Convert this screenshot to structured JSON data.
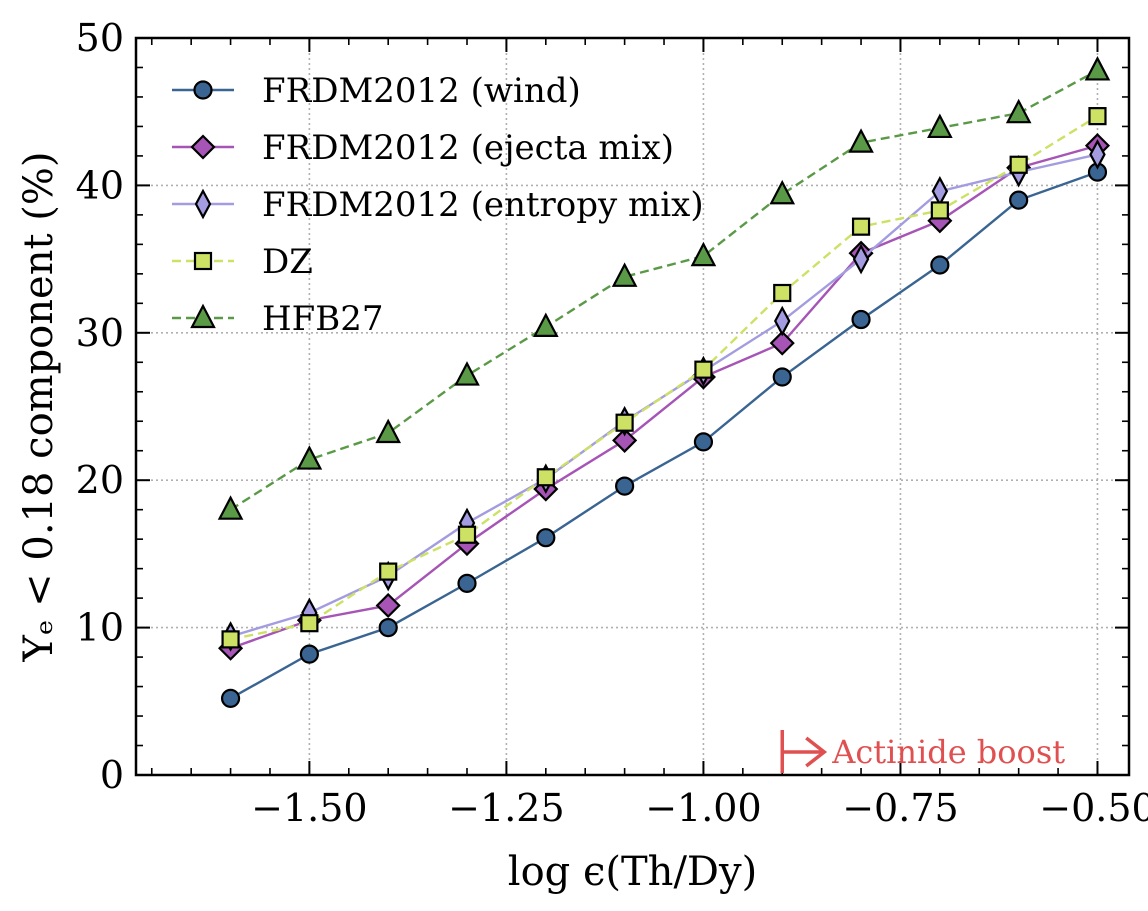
{
  "chart_data": {
    "type": "line",
    "title": "",
    "xlabel": "log ϵ(Th/Dy)",
    "ylabel": "Yₑ < 0.18 component (%)",
    "xlim": [
      -1.72,
      -0.46
    ],
    "ylim": [
      0,
      50
    ],
    "xticks": [
      -1.5,
      -1.25,
      -1.0,
      -0.75,
      -0.5
    ],
    "xtick_labels": [
      "−1.50",
      "−1.25",
      "−1.00",
      "−0.75",
      "−0.50"
    ],
    "yticks": [
      0,
      10,
      20,
      30,
      40,
      50
    ],
    "ytick_labels": [
      "0",
      "10",
      "20",
      "30",
      "40",
      "50"
    ],
    "grid": true,
    "legend_position": "top-left",
    "x": [
      -1.6,
      -1.5,
      -1.4,
      -1.3,
      -1.2,
      -1.1,
      -1.0,
      -0.9,
      -0.8,
      -0.7,
      -0.6,
      -0.5
    ],
    "series": [
      {
        "name": "FRDM2012 (wind)",
        "marker": "circle",
        "linestyle": "solid",
        "color": "#3a6592",
        "values": [
          5.2,
          8.2,
          10.0,
          13.0,
          16.1,
          19.6,
          22.6,
          27.0,
          30.9,
          34.6,
          39.0,
          40.9
        ]
      },
      {
        "name": "FRDM2012 (ejecta mix)",
        "marker": "diamond",
        "linestyle": "solid",
        "color": "#a654b5",
        "values": [
          8.6,
          10.5,
          11.5,
          15.7,
          19.4,
          22.7,
          27.0,
          29.3,
          35.4,
          37.6,
          41.2,
          42.7
        ]
      },
      {
        "name": "FRDM2012 (entropy mix)",
        "marker": "thin-diamond",
        "linestyle": "solid",
        "color": "#a39ce0",
        "values": [
          9.4,
          11.0,
          13.5,
          17.1,
          20.1,
          24.0,
          27.4,
          30.8,
          35.0,
          39.6,
          40.9,
          42.1
        ]
      },
      {
        "name": "DZ",
        "marker": "square",
        "linestyle": "dashed",
        "color": "#cde164",
        "values": [
          9.2,
          10.3,
          13.8,
          16.3,
          20.2,
          23.9,
          27.5,
          32.7,
          37.2,
          38.3,
          41.4,
          44.7
        ]
      },
      {
        "name": "HFB27",
        "marker": "triangle",
        "linestyle": "dashed",
        "color": "#5a9a47",
        "values": [
          18.0,
          21.4,
          23.2,
          27.1,
          30.4,
          33.8,
          35.2,
          39.4,
          42.9,
          43.9,
          44.9,
          47.8
        ]
      }
    ],
    "annotation": {
      "text": "Actinide boost",
      "x": -0.9,
      "color": "#e05050"
    }
  }
}
